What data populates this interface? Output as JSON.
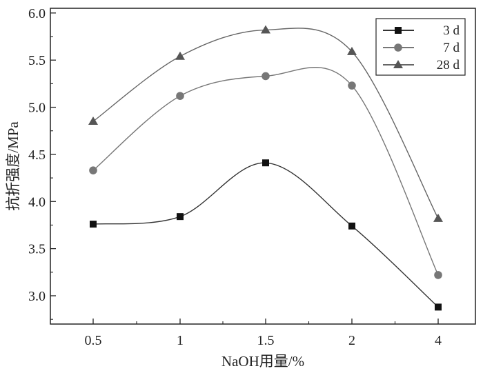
{
  "chart_data": {
    "type": "scatter",
    "title": "",
    "xlabel": "NaOH用量/%",
    "ylabel": "抗折强度/MPa",
    "categories": [
      "0.5",
      "1",
      "1.5",
      "2",
      "4"
    ],
    "ylim": [
      2.7,
      6.05
    ],
    "yticks": [
      3.0,
      3.5,
      4.0,
      4.5,
      5.0,
      5.5,
      6.0
    ],
    "ytick_labels": [
      "3.0",
      "3.5",
      "4.0",
      "4.5",
      "5.0",
      "5.5",
      "6.0"
    ],
    "grid": false,
    "legend_position": "top-right",
    "trend_lines": "smooth spline fit",
    "series": [
      {
        "name": "3 d",
        "marker": "square",
        "color": "#111111",
        "line_color": "#333333",
        "values": [
          3.76,
          3.84,
          4.41,
          3.74,
          2.88
        ]
      },
      {
        "name": "7 d",
        "marker": "circle",
        "color": "#777777",
        "line_color": "#777777",
        "values": [
          4.33,
          5.12,
          5.33,
          5.23,
          3.22
        ]
      },
      {
        "name": "28 d",
        "marker": "triangle",
        "color": "#555555",
        "line_color": "#666666",
        "values": [
          4.85,
          5.54,
          5.82,
          5.59,
          3.82
        ]
      }
    ]
  }
}
